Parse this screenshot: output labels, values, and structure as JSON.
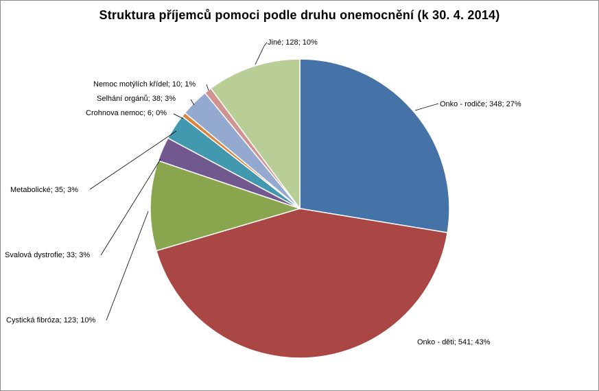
{
  "chart_data": {
    "type": "pie",
    "title": "Struktura  příjemců  pomoci  podle  druhu  onemocnění  (k 30. 4. 2014)",
    "slices": [
      {
        "label": "Onko - rodiče",
        "value": 348,
        "percent": "27%",
        "color": "#4572a7",
        "data_label": "Onko - rodiče; 348; 27%"
      },
      {
        "label": "Onko - děti",
        "value": 541,
        "percent": "43%",
        "color": "#aa4643",
        "data_label": "Onko - děti; 541; 43%"
      },
      {
        "label": "Cystická fibróza",
        "value": 123,
        "percent": "10%",
        "color": "#89a54e",
        "data_label": "Cystická fibróza; 123; 10%"
      },
      {
        "label": "Svalová dystrofie",
        "value": 33,
        "percent": "3%",
        "color": "#71588f",
        "data_label": "Svalová dystrofie; 33; 3%"
      },
      {
        "label": "Metabolické",
        "value": 35,
        "percent": "3%",
        "color": "#4198af",
        "data_label": "Metabolické; 35; 3%"
      },
      {
        "label": "Crohnova nemoc",
        "value": 6,
        "percent": "0%",
        "color": "#db843d",
        "data_label": "Crohnova nemoc; 6; 0%"
      },
      {
        "label": "Selhání orgánů",
        "value": 38,
        "percent": "3%",
        "color": "#93a9cf",
        "data_label": "Selhání orgánů; 38; 3%"
      },
      {
        "label": "Nemoc motýlích křídel",
        "value": 10,
        "percent": "1%",
        "color": "#d19392",
        "data_label": "Nemoc  motýlích křídel; 10; 1%"
      },
      {
        "label": "Jiné",
        "value": 128,
        "percent": "10%",
        "color": "#b9cd96",
        "data_label": "Jiné; 128; 10%"
      }
    ],
    "start": "12 o'clock",
    "direction": "clockwise",
    "legend": "none"
  }
}
